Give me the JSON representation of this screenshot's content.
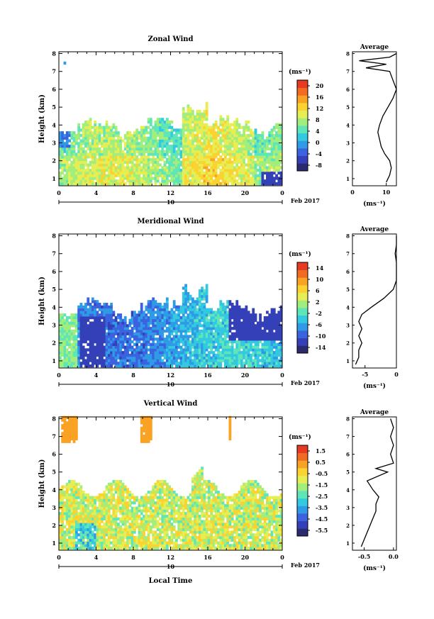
{
  "chart_data": [
    {
      "type": "heatmap",
      "title": "Zonal Wind",
      "ylabel": "Height (km)",
      "xlabel": "",
      "unit": "(ms⁻¹)",
      "x_ticks": [
        "0",
        "4",
        "8",
        "12",
        "16",
        "20",
        "0"
      ],
      "y_ticks": [
        "1",
        "2",
        "3",
        "4",
        "5",
        "6",
        "7",
        "8"
      ],
      "xlim": [
        0,
        24
      ],
      "ylim": [
        0.6,
        8.1
      ],
      "date_label": "10",
      "month_label": "Feb 2017",
      "colorbar": {
        "ticks": [
          "20",
          "16",
          "12",
          "8",
          "4",
          "0",
          "-4",
          "-8"
        ],
        "range": [
          -10,
          22
        ],
        "colors": [
          "#2b2a6e",
          "#3440b8",
          "#3b63e0",
          "#2f9be6",
          "#33c9e0",
          "#5ee6b8",
          "#a2ee7c",
          "#e6ee54",
          "#fbd330",
          "#f9a224",
          "#f26b22",
          "#e63a22"
        ]
      },
      "average": {
        "title": "Average",
        "xlabel": "(ms⁻¹)",
        "x_ticks": [
          "0",
          "10"
        ],
        "xlim": [
          0,
          13
        ],
        "profile": [
          [
            10,
            0.8
          ],
          [
            11,
            1.2
          ],
          [
            11.5,
            1.6
          ],
          [
            11,
            2
          ],
          [
            9.5,
            2.4
          ],
          [
            8.5,
            2.8
          ],
          [
            8,
            3.2
          ],
          [
            7.5,
            3.6
          ],
          [
            8,
            4
          ],
          [
            9,
            4.5
          ],
          [
            10.5,
            5
          ],
          [
            12,
            5.5
          ],
          [
            13,
            6
          ],
          [
            12,
            6.5
          ],
          [
            11,
            7
          ],
          [
            4,
            7.2
          ],
          [
            10,
            7.4
          ],
          [
            2,
            7.6
          ],
          [
            11,
            7.8
          ],
          [
            13,
            8
          ]
        ]
      }
    },
    {
      "type": "heatmap",
      "title": "Meridional Wind",
      "ylabel": "Height (km)",
      "xlabel": "",
      "unit": "(ms⁻¹)",
      "x_ticks": [
        "0",
        "4",
        "8",
        "12",
        "16",
        "20",
        "0"
      ],
      "y_ticks": [
        "1",
        "2",
        "3",
        "4",
        "5",
        "6",
        "7",
        "8"
      ],
      "xlim": [
        0,
        24
      ],
      "ylim": [
        0.6,
        8.1
      ],
      "date_label": "10",
      "month_label": "Feb 2017",
      "colorbar": {
        "ticks": [
          "14",
          "10",
          "6",
          "2",
          "-2",
          "-6",
          "-10",
          "-14"
        ],
        "range": [
          -16,
          16
        ],
        "colors": [
          "#2b2a6e",
          "#3440b8",
          "#3b63e0",
          "#2f9be6",
          "#33c9e0",
          "#5ee6b8",
          "#a2ee7c",
          "#e6ee54",
          "#fbd330",
          "#f9a224",
          "#f26b22",
          "#e63a22"
        ]
      },
      "average": {
        "title": "Average",
        "xlabel": "(ms⁻¹)",
        "x_ticks": [
          "-5",
          "0"
        ],
        "xlim": [
          -7,
          0
        ],
        "profile": [
          [
            -6.5,
            0.8
          ],
          [
            -6,
            1.2
          ],
          [
            -6,
            1.6
          ],
          [
            -5.5,
            2
          ],
          [
            -6,
            2.4
          ],
          [
            -5.5,
            2.8
          ],
          [
            -6,
            3.2
          ],
          [
            -5.5,
            3.6
          ],
          [
            -4,
            4
          ],
          [
            -2,
            4.5
          ],
          [
            -0.5,
            5
          ],
          [
            0,
            5.5
          ],
          [
            0,
            6
          ],
          [
            0,
            6.5
          ],
          [
            -0.2,
            7
          ],
          [
            0,
            7.5
          ],
          [
            0,
            8
          ]
        ]
      }
    },
    {
      "type": "heatmap",
      "title": "Vertical Wind",
      "ylabel": "Height (km)",
      "xlabel": "Local Time",
      "unit": "(ms⁻¹)",
      "x_ticks": [
        "0",
        "4",
        "8",
        "12",
        "16",
        "20",
        "0"
      ],
      "y_ticks": [
        "1",
        "2",
        "3",
        "4",
        "5",
        "6",
        "7",
        "8"
      ],
      "xlim": [
        0,
        24
      ],
      "ylim": [
        0.6,
        8.1
      ],
      "date_label": "10",
      "month_label": "Feb 2017",
      "colorbar": {
        "ticks": [
          "1.5",
          "0.5",
          "-0.5",
          "-1.5",
          "-2.5",
          "-3.5",
          "-4.5",
          "-5.5"
        ],
        "range": [
          -6,
          2
        ],
        "colors": [
          "#2b2a6e",
          "#3440b8",
          "#3b63e0",
          "#2f9be6",
          "#33c9e0",
          "#5ee6b8",
          "#a2ee7c",
          "#e6ee54",
          "#fbd330",
          "#f9a224",
          "#f26b22",
          "#e63a22"
        ]
      },
      "average": {
        "title": "Average",
        "xlabel": "(ms⁻¹)",
        "x_ticks": [
          "-0.5",
          "0.0"
        ],
        "xlim": [
          -0.7,
          0.05
        ],
        "profile": [
          [
            -0.55,
            0.8
          ],
          [
            -0.5,
            1.2
          ],
          [
            -0.45,
            1.6
          ],
          [
            -0.4,
            2
          ],
          [
            -0.35,
            2.4
          ],
          [
            -0.3,
            2.8
          ],
          [
            -0.3,
            3.2
          ],
          [
            -0.25,
            3.6
          ],
          [
            -0.35,
            4
          ],
          [
            -0.45,
            4.5
          ],
          [
            -0.1,
            5
          ],
          [
            -0.3,
            5.2
          ],
          [
            0.0,
            5.5
          ],
          [
            -0.05,
            6
          ],
          [
            0.0,
            6.5
          ],
          [
            -0.05,
            7
          ],
          [
            0.0,
            7.5
          ],
          [
            -0.05,
            8
          ]
        ]
      }
    }
  ]
}
